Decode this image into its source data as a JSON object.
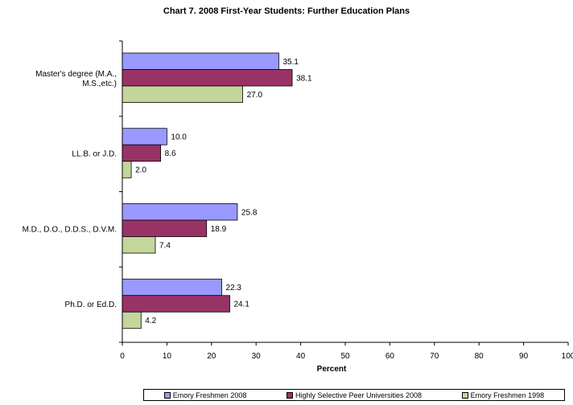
{
  "chart_data": {
    "type": "bar",
    "orientation": "horizontal",
    "title": "Chart 7.  2008 First-Year Students:  Further Education Plans",
    "xlabel": "Percent",
    "ylabel": "",
    "xlim": [
      0,
      100
    ],
    "xticks": [
      "0",
      "10",
      "20",
      "30",
      "40",
      "50",
      "60",
      "70",
      "80",
      "90",
      "100"
    ],
    "categories": [
      [
        "Master's degree (M.A.,",
        "M.S.,etc.)"
      ],
      [
        "LL.B. or J.D."
      ],
      [
        "M.D., D.O., D.D.S., D.V.M."
      ],
      [
        "Ph.D. or Ed.D."
      ]
    ],
    "series": [
      {
        "name": "Emory Freshmen 2008",
        "color": "#9999ff",
        "values": [
          35.1,
          10.0,
          25.8,
          22.3
        ],
        "labels": [
          "35.1",
          "10.0",
          "25.8",
          "22.3"
        ]
      },
      {
        "name": "Highly Selective Peer Universities 2008",
        "color": "#993366",
        "values": [
          38.1,
          8.6,
          18.9,
          24.1
        ],
        "labels": [
          "38.1",
          "8.6",
          "18.9",
          "24.1"
        ]
      },
      {
        "name": "Emory Freshmen 1998",
        "color": "#c3d69b",
        "values": [
          27.0,
          2.0,
          7.4,
          4.2
        ],
        "labels": [
          "27.0",
          "2.0",
          "7.4",
          "4.2"
        ]
      }
    ],
    "legend_position": "bottom",
    "grid": false
  }
}
